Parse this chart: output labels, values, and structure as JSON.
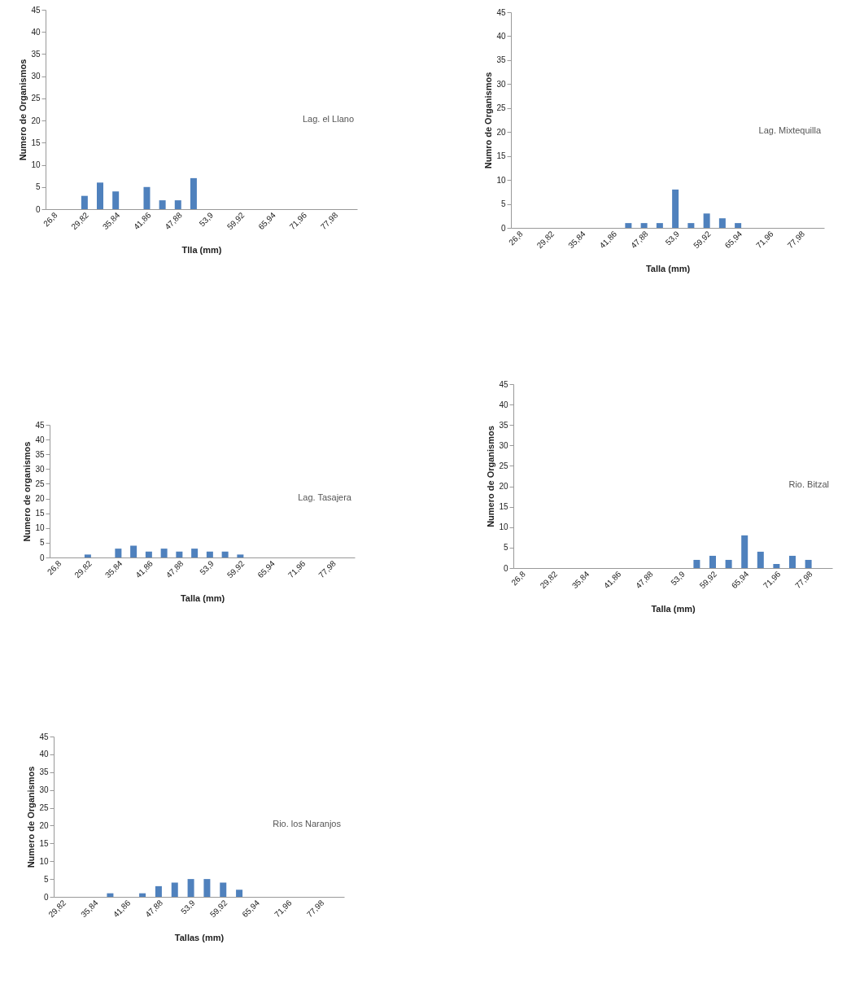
{
  "chart_data": [
    {
      "type": "bar",
      "ylabel": "Numero de Organismos",
      "xlabel": "Tlla (mm)",
      "annotations": [
        "Lag. el Llano"
      ],
      "color": "#4f81bd",
      "categories": [
        "26,8",
        null,
        "29,82",
        null,
        "35,84",
        null,
        "41,86",
        null,
        "47,88",
        null,
        "53,9",
        null,
        "59,92",
        null,
        "65,94",
        null,
        "71,96",
        null,
        "77,98",
        null
      ],
      "values": [
        0,
        0,
        3,
        6,
        4,
        0,
        5,
        2,
        2,
        7,
        0,
        0,
        0,
        0,
        0,
        0,
        0,
        0,
        0,
        0
      ],
      "ylim": [
        0,
        45
      ],
      "yticks": [
        0,
        5,
        10,
        15,
        20,
        25,
        30,
        35,
        40,
        45
      ]
    },
    {
      "type": "bar",
      "ylabel": "Numro de Organismos",
      "xlabel": "Talla (mm)",
      "annotations": [
        "Lag. Mixtequilla"
      ],
      "color": "#4f81bd",
      "categories": [
        "26,8",
        null,
        "29,82",
        null,
        "35,84",
        null,
        "41,86",
        null,
        "47,88",
        null,
        "53,9",
        null,
        "59,92",
        null,
        "65,94",
        null,
        "71,96",
        null,
        "77,98",
        null
      ],
      "values": [
        0,
        0,
        0,
        0,
        0,
        0,
        0,
        1,
        1,
        1,
        8,
        1,
        3,
        2,
        1,
        0,
        0,
        0,
        0,
        0
      ],
      "ylim": [
        0,
        45
      ],
      "yticks": [
        0,
        5,
        10,
        15,
        20,
        25,
        30,
        35,
        40,
        45
      ]
    },
    {
      "type": "bar",
      "ylabel": "Numero de organismos",
      "xlabel": "Talla (mm)",
      "annotations": [
        "Lag. Tasajera"
      ],
      "color": "#4f81bd",
      "categories": [
        "26,8",
        null,
        "29,82",
        null,
        "35,84",
        null,
        "41,86",
        null,
        "47,88",
        null,
        "53,9",
        null,
        "59,92",
        null,
        "65,94",
        null,
        "71,96",
        null,
        "77,98",
        null
      ],
      "values": [
        0,
        0,
        1,
        0,
        3,
        4,
        2,
        3,
        2,
        3,
        2,
        2,
        1,
        0,
        0,
        0,
        0,
        0,
        0,
        0
      ],
      "ylim": [
        0,
        45
      ],
      "yticks": [
        0,
        5,
        10,
        15,
        20,
        25,
        30,
        35,
        40,
        45
      ]
    },
    {
      "type": "bar",
      "ylabel": "Numero de Organismos",
      "xlabel": "Talla (mm)",
      "annotations": [
        "Rio. Bitzal"
      ],
      "color": "#4f81bd",
      "categories": [
        "26,8",
        null,
        "29,82",
        null,
        "35,84",
        null,
        "41,86",
        null,
        "47,88",
        null,
        "53,9",
        null,
        "59,92",
        null,
        "65,94",
        null,
        "71,96",
        null,
        "77,98",
        null
      ],
      "values": [
        0,
        0,
        0,
        0,
        0,
        0,
        0,
        0,
        0,
        0,
        0,
        2,
        3,
        2,
        8,
        4,
        1,
        3,
        2,
        0
      ],
      "ylim": [
        0,
        45
      ],
      "yticks": [
        0,
        5,
        10,
        15,
        20,
        25,
        30,
        35,
        40,
        45
      ]
    },
    {
      "type": "bar",
      "ylabel": "Numero de Organismos",
      "xlabel": "Tallas (mm)",
      "annotations": [
        "Rio. los Naranjos"
      ],
      "color": "#4f81bd",
      "categories": [
        "29,82",
        null,
        "35,84",
        null,
        "41,86",
        null,
        "47,88",
        null,
        "53,9",
        null,
        "59,92",
        null,
        "65,94",
        null,
        "71,96",
        null,
        "77,98",
        null
      ],
      "values": [
        0,
        0,
        0,
        1,
        0,
        1,
        3,
        4,
        5,
        5,
        4,
        2,
        0,
        0,
        0,
        0,
        0,
        0
      ],
      "ylim": [
        0,
        45
      ],
      "yticks": [
        0,
        5,
        10,
        15,
        20,
        25,
        30,
        35,
        40,
        45
      ]
    }
  ]
}
